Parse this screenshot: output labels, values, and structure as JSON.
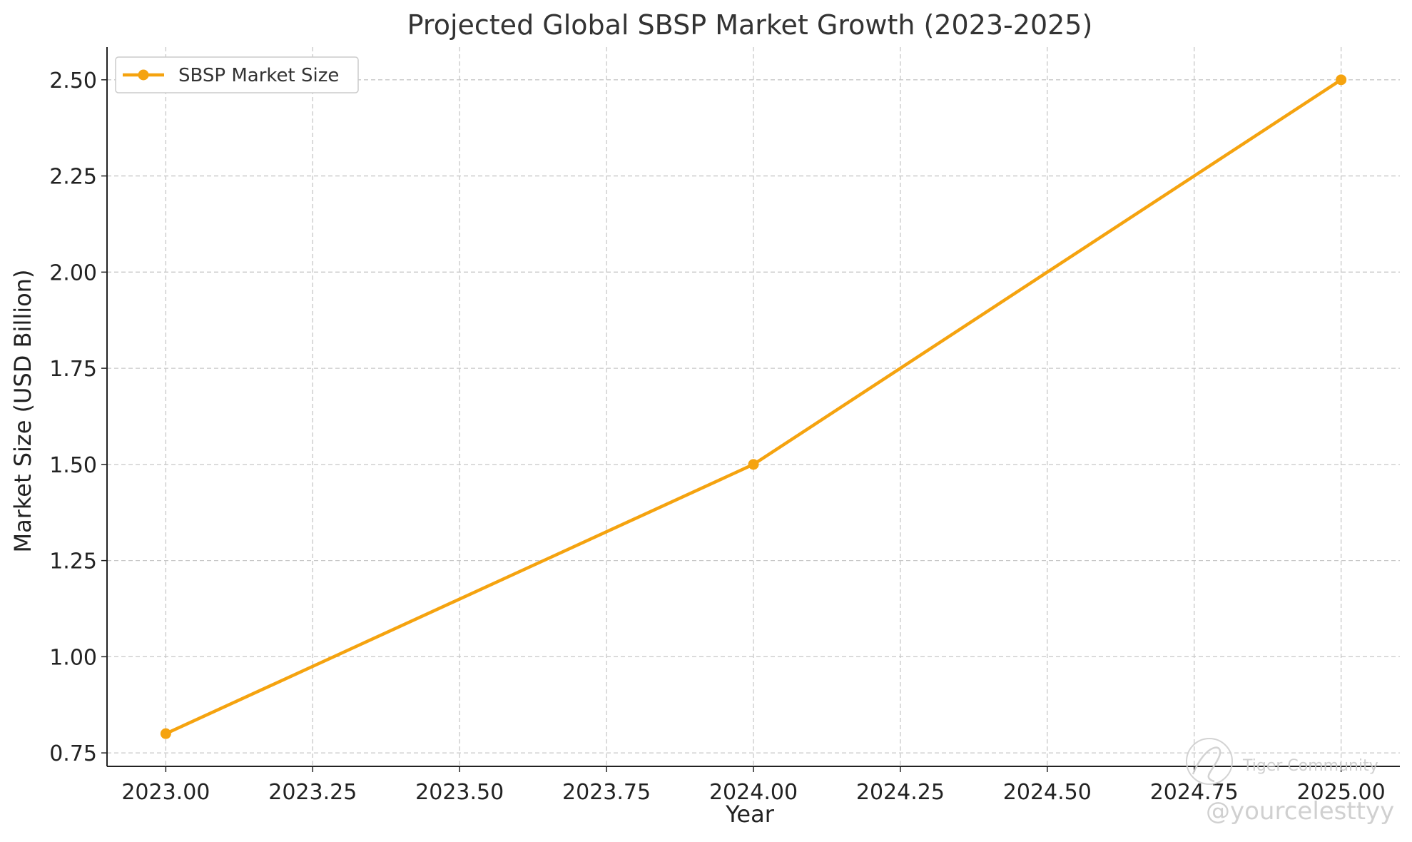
{
  "chart_data": {
    "type": "line",
    "title": "Projected Global SBSP Market Growth (2023-2025)",
    "xlabel": "Year",
    "ylabel": "Market Size (USD Billion)",
    "xlim": [
      2022.9,
      2025.1
    ],
    "ylim": [
      0.715,
      2.585
    ],
    "x_ticks": [
      2023.0,
      2023.25,
      2023.5,
      2023.75,
      2024.0,
      2024.25,
      2024.5,
      2024.75,
      2025.0
    ],
    "x_tick_labels": [
      "2023.00",
      "2023.25",
      "2023.50",
      "2023.75",
      "2024.00",
      "2024.25",
      "2024.50",
      "2024.75",
      "2025.00"
    ],
    "y_ticks": [
      0.75,
      1.0,
      1.25,
      1.5,
      1.75,
      2.0,
      2.25,
      2.5
    ],
    "y_tick_labels": [
      "0.75",
      "1.00",
      "1.25",
      "1.50",
      "1.75",
      "2.00",
      "2.25",
      "2.50"
    ],
    "grid": true,
    "legend_position": "top-left",
    "series": [
      {
        "name": "SBSP Market Size",
        "color": "#F5A30F",
        "marker": "circle",
        "x": [
          2023,
          2024,
          2025
        ],
        "y": [
          0.8,
          1.5,
          2.5
        ]
      }
    ]
  },
  "watermark": {
    "line1": "Tiger Community",
    "line2": "@yourcelesttyy"
  }
}
